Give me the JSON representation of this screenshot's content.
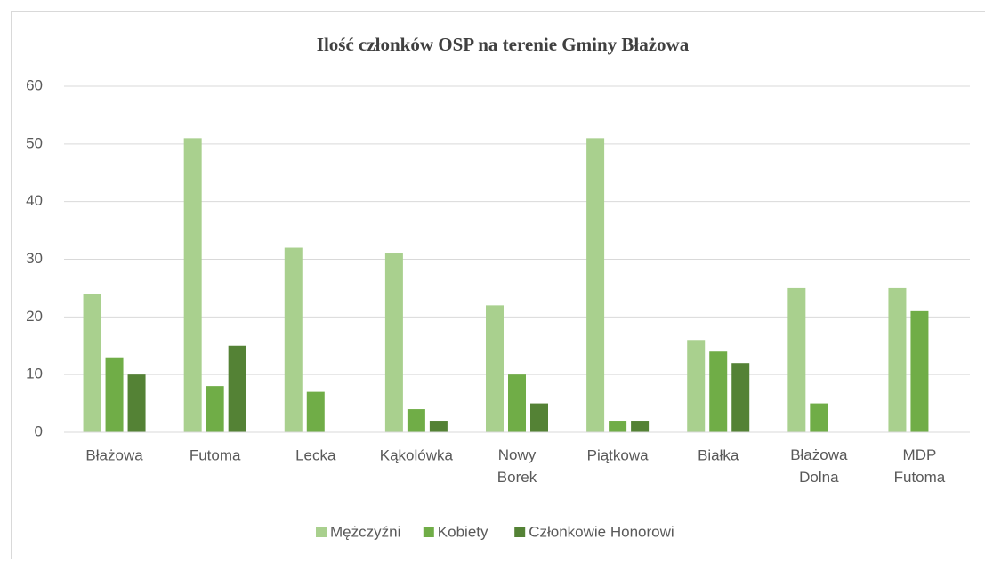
{
  "chart_data": {
    "type": "bar",
    "title": "Ilość członków OSP na terenie Gminy Błażowa",
    "categories": [
      "Błażowa",
      "Futoma",
      "Lecka",
      "Kąkolówka",
      "Nowy Borek",
      "Piątkowa",
      "Białka",
      "Błażowa Dolna",
      "MDP Futoma"
    ],
    "series": [
      {
        "name": "Mężczyźni",
        "color": "#a9d08e",
        "values": [
          24,
          51,
          32,
          31,
          22,
          51,
          16,
          25,
          25
        ]
      },
      {
        "name": "Kobiety",
        "color": "#70ad47",
        "values": [
          13,
          8,
          7,
          4,
          10,
          2,
          14,
          5,
          21
        ]
      },
      {
        "name": "Członkowie Honorowi",
        "color": "#548235",
        "values": [
          10,
          15,
          0,
          2,
          5,
          2,
          12,
          0,
          0
        ]
      }
    ],
    "ylim": [
      0,
      60
    ],
    "yticks": [
      0,
      10,
      20,
      30,
      40,
      50,
      60
    ],
    "grid": true,
    "legend": "bottom"
  }
}
